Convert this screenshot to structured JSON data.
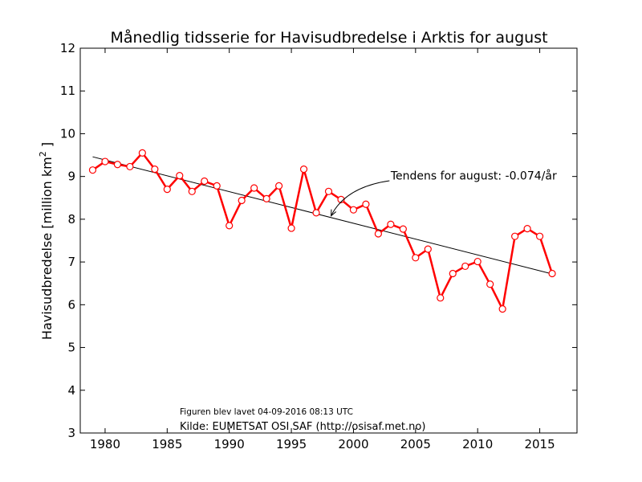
{
  "chart_data": {
    "type": "line",
    "title": "Månedlig tidsserie for Havisudbredelse i Arktis for august",
    "ylabel": "Havisudbredelse [million km",
    "ylabel_sup": "2",
    "ylabel_end": " ]",
    "xlabel": "",
    "xlim": [
      1978,
      2018
    ],
    "ylim": [
      3,
      12
    ],
    "xticks": [
      1980,
      1985,
      1990,
      1995,
      2000,
      2005,
      2010,
      2015
    ],
    "yticks": [
      3,
      4,
      5,
      6,
      7,
      8,
      9,
      10,
      11,
      12
    ],
    "grid": false,
    "colors": {
      "series": "#ff0000",
      "marker_fill": "#ffffff",
      "trend": "#000000"
    },
    "series": [
      {
        "x": [
          1979,
          1980,
          1981,
          1982,
          1983,
          1984,
          1985,
          1986,
          1987,
          1988,
          1989,
          1990,
          1991,
          1992,
          1993,
          1994,
          1995,
          1996,
          1997,
          1998,
          1999,
          2000,
          2001,
          2002,
          2003,
          2004,
          2005,
          2006,
          2007,
          2008,
          2009,
          2010,
          2011,
          2012,
          2013,
          2014,
          2015,
          2016
        ],
        "values": [
          9.15,
          9.35,
          9.28,
          9.23,
          9.55,
          9.17,
          8.7,
          9.02,
          8.65,
          8.89,
          8.78,
          7.85,
          8.44,
          8.73,
          8.48,
          8.78,
          7.79,
          9.17,
          8.15,
          8.65,
          8.46,
          8.22,
          8.35,
          7.66,
          7.88,
          7.77,
          7.1,
          7.3,
          6.16,
          6.73,
          6.9,
          7.01,
          6.48,
          5.9,
          7.6,
          7.78,
          7.6,
          6.73
        ]
      }
    ],
    "trend": {
      "x": [
        1979,
        2016
      ],
      "values": [
        9.46,
        6.72
      ]
    },
    "annotation": {
      "text": "Tendens for august: -0.074/år",
      "text_x": 2003,
      "text_y": 8.93,
      "arrow_from_x": 2002.9,
      "arrow_from_y": 8.9,
      "arrow_to_x": 1998.2,
      "arrow_to_y": 8.08
    }
  },
  "footer": {
    "created_text": "Figuren blev lavet 04-09-2016 08:13 UTC",
    "source_text": "Kilde: EUMETSAT OSI SAF (http://osisaf.met.no)"
  }
}
